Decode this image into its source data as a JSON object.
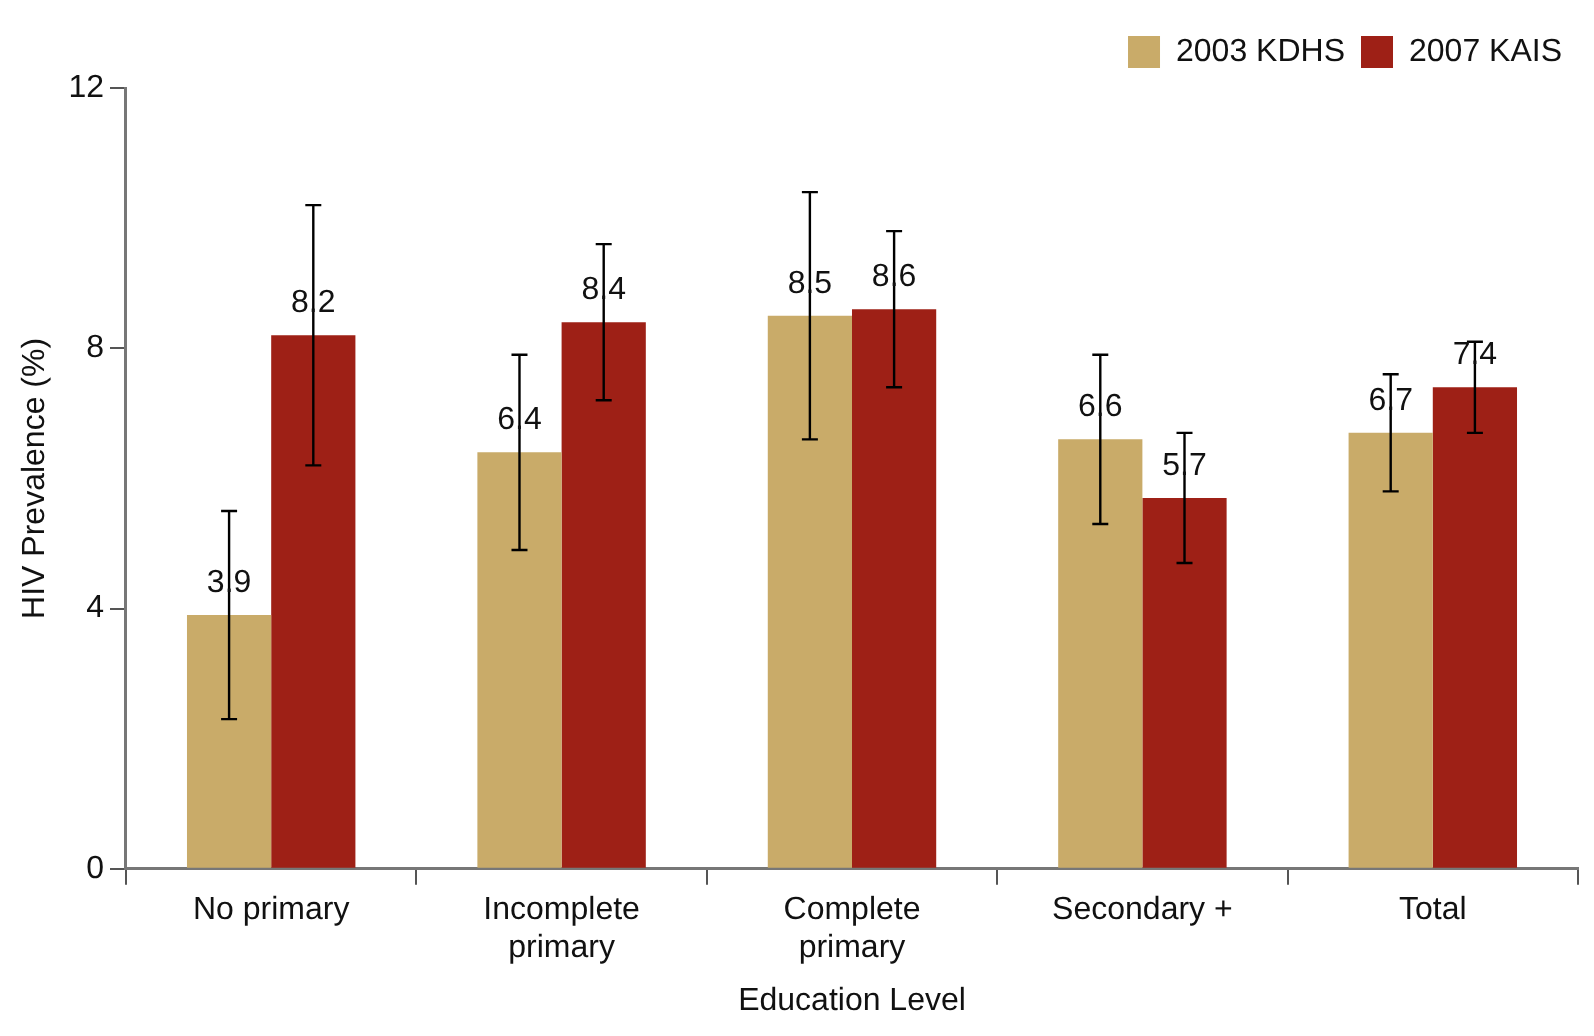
{
  "chart_data": {
    "type": "bar",
    "xlabel": "Education Level",
    "ylabel": "HIV Prevalence (%)",
    "categories": [
      "No primary",
      "Incomplete primary",
      "Complete primary",
      "Secondary +",
      "Total"
    ],
    "series": [
      {
        "name": "2003 KDHS",
        "color": "#c9ab69",
        "values": [
          3.9,
          6.4,
          8.5,
          6.6,
          6.7
        ],
        "errors": [
          [
            2.3,
            5.5
          ],
          [
            4.9,
            7.9
          ],
          [
            6.6,
            10.4
          ],
          [
            5.3,
            7.9
          ],
          [
            5.8,
            7.6
          ]
        ]
      },
      {
        "name": "2007 KAIS",
        "color": "#9e2016",
        "values": [
          8.2,
          8.4,
          8.6,
          5.7,
          7.4
        ],
        "errors": [
          [
            6.2,
            10.2
          ],
          [
            7.2,
            9.6
          ],
          [
            7.4,
            9.8
          ],
          [
            4.7,
            6.7
          ],
          [
            6.7,
            8.1
          ]
        ]
      }
    ],
    "ylim": [
      0,
      12
    ],
    "yticks": [
      0,
      4,
      8,
      12
    ],
    "grid": false,
    "legend": "top right",
    "data_labels": true
  }
}
